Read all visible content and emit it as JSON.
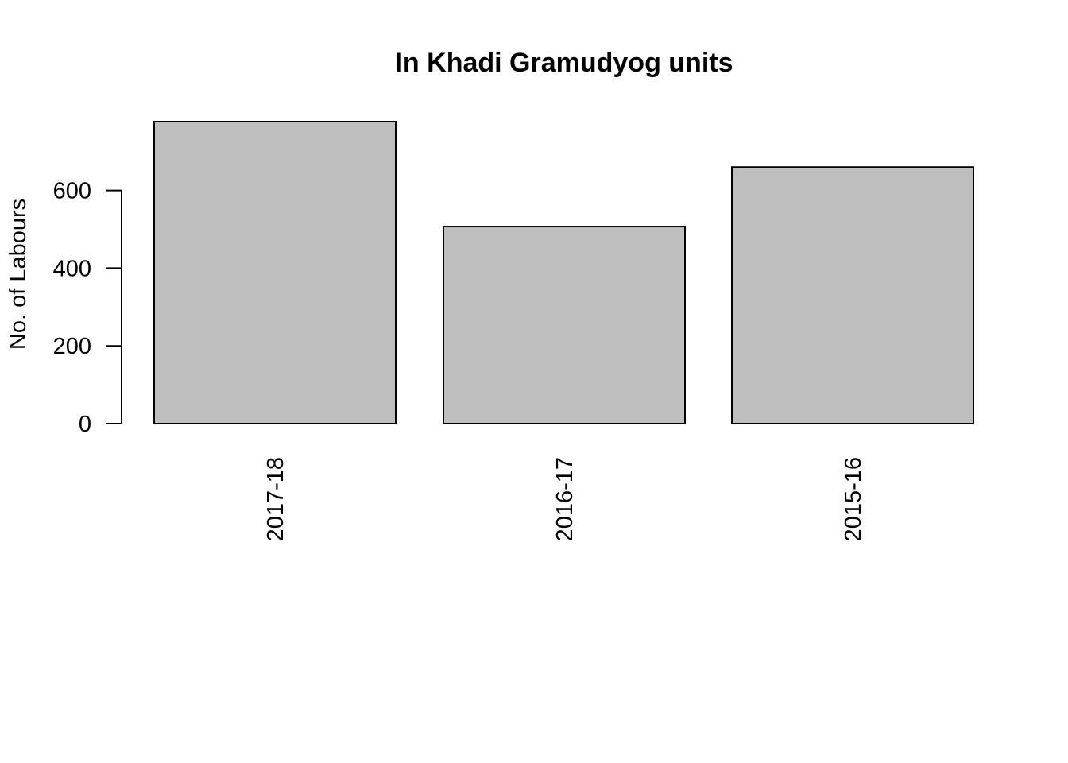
{
  "chart_data": {
    "type": "bar",
    "title": "In Khadi Gramudyog units",
    "xlabel": "",
    "ylabel": "No. of Labours",
    "categories": [
      "2017-18",
      "2016-17",
      "2015-16"
    ],
    "values": [
      777,
      507,
      660
    ],
    "ylim": [
      0,
      777
    ],
    "yticks": [
      0,
      200,
      400,
      600
    ],
    "ytick_labels": [
      "0",
      "200",
      "400",
      "600"
    ],
    "grid": false,
    "legend": "none",
    "colors": {
      "bar_fill": "#bebebe",
      "bar_stroke": "#000000",
      "background": "#ffffff"
    }
  }
}
